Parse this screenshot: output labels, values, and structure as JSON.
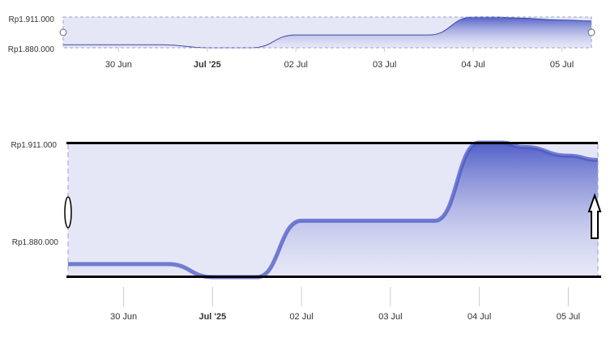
{
  "chart_data": [
    {
      "type": "area",
      "role": "navigator",
      "y_axis_labels": [
        "Rp1.911.000",
        "Rp1.880.000"
      ],
      "x_tick_labels": [
        "30 Jun",
        "Jul '25",
        "02 Jul",
        "03 Jul",
        "04 Jul",
        "05 Jul"
      ],
      "bold_tick": "Jul '25",
      "x": [
        "2025-06-29 09:00",
        "2025-06-30 00:00",
        "2025-06-30 12:00",
        "2025-07-01 00:00",
        "2025-07-01 12:00",
        "2025-07-02 00:00",
        "2025-07-02 12:00",
        "2025-07-03 00:00",
        "2025-07-03 12:00",
        "2025-07-04 00:00",
        "2025-07-04 06:00",
        "2025-07-04 12:00",
        "2025-07-05 00:00",
        "2025-07-05 08:00"
      ],
      "values": [
        1883000,
        1883000,
        1883000,
        1880000,
        1880000,
        1893000,
        1893000,
        1893000,
        1893000,
        1911000,
        1911000,
        1910000,
        1908000,
        1907000
      ],
      "ylim": [
        1880000,
        1911000
      ],
      "colors": {
        "fill_top": "#4a58c4",
        "fill_bottom": "#e8e9f8",
        "line": "#3d4aa8",
        "mask": "#e6e7f6"
      }
    },
    {
      "type": "area",
      "role": "zoomed",
      "y_axis_labels": [
        "Rp1.911.000",
        "Rp1.880.000"
      ],
      "x_tick_labels": [
        "30 Jun",
        "Jul '25",
        "02 Jul",
        "03 Jul",
        "04 Jul",
        "05 Jul"
      ],
      "bold_tick": "Jul '25",
      "x": [
        "2025-06-29 09:00",
        "2025-06-30 00:00",
        "2025-06-30 12:00",
        "2025-07-01 00:00",
        "2025-07-01 12:00",
        "2025-07-02 00:00",
        "2025-07-02 12:00",
        "2025-07-03 00:00",
        "2025-07-03 12:00",
        "2025-07-04 00:00",
        "2025-07-04 06:00",
        "2025-07-04 12:00",
        "2025-07-05 00:00",
        "2025-07-05 08:00"
      ],
      "values": [
        1883000,
        1883000,
        1883000,
        1880000,
        1880000,
        1893000,
        1893000,
        1893000,
        1893000,
        1911000,
        1911000,
        1910000,
        1908000,
        1907000
      ],
      "ylim": [
        1880000,
        1911000
      ],
      "colors": {
        "fill_top": "#4a58c4",
        "fill_bottom": "#e8e9f8",
        "line": "#3d4aa8",
        "mask": "#e6e7f6"
      }
    }
  ]
}
